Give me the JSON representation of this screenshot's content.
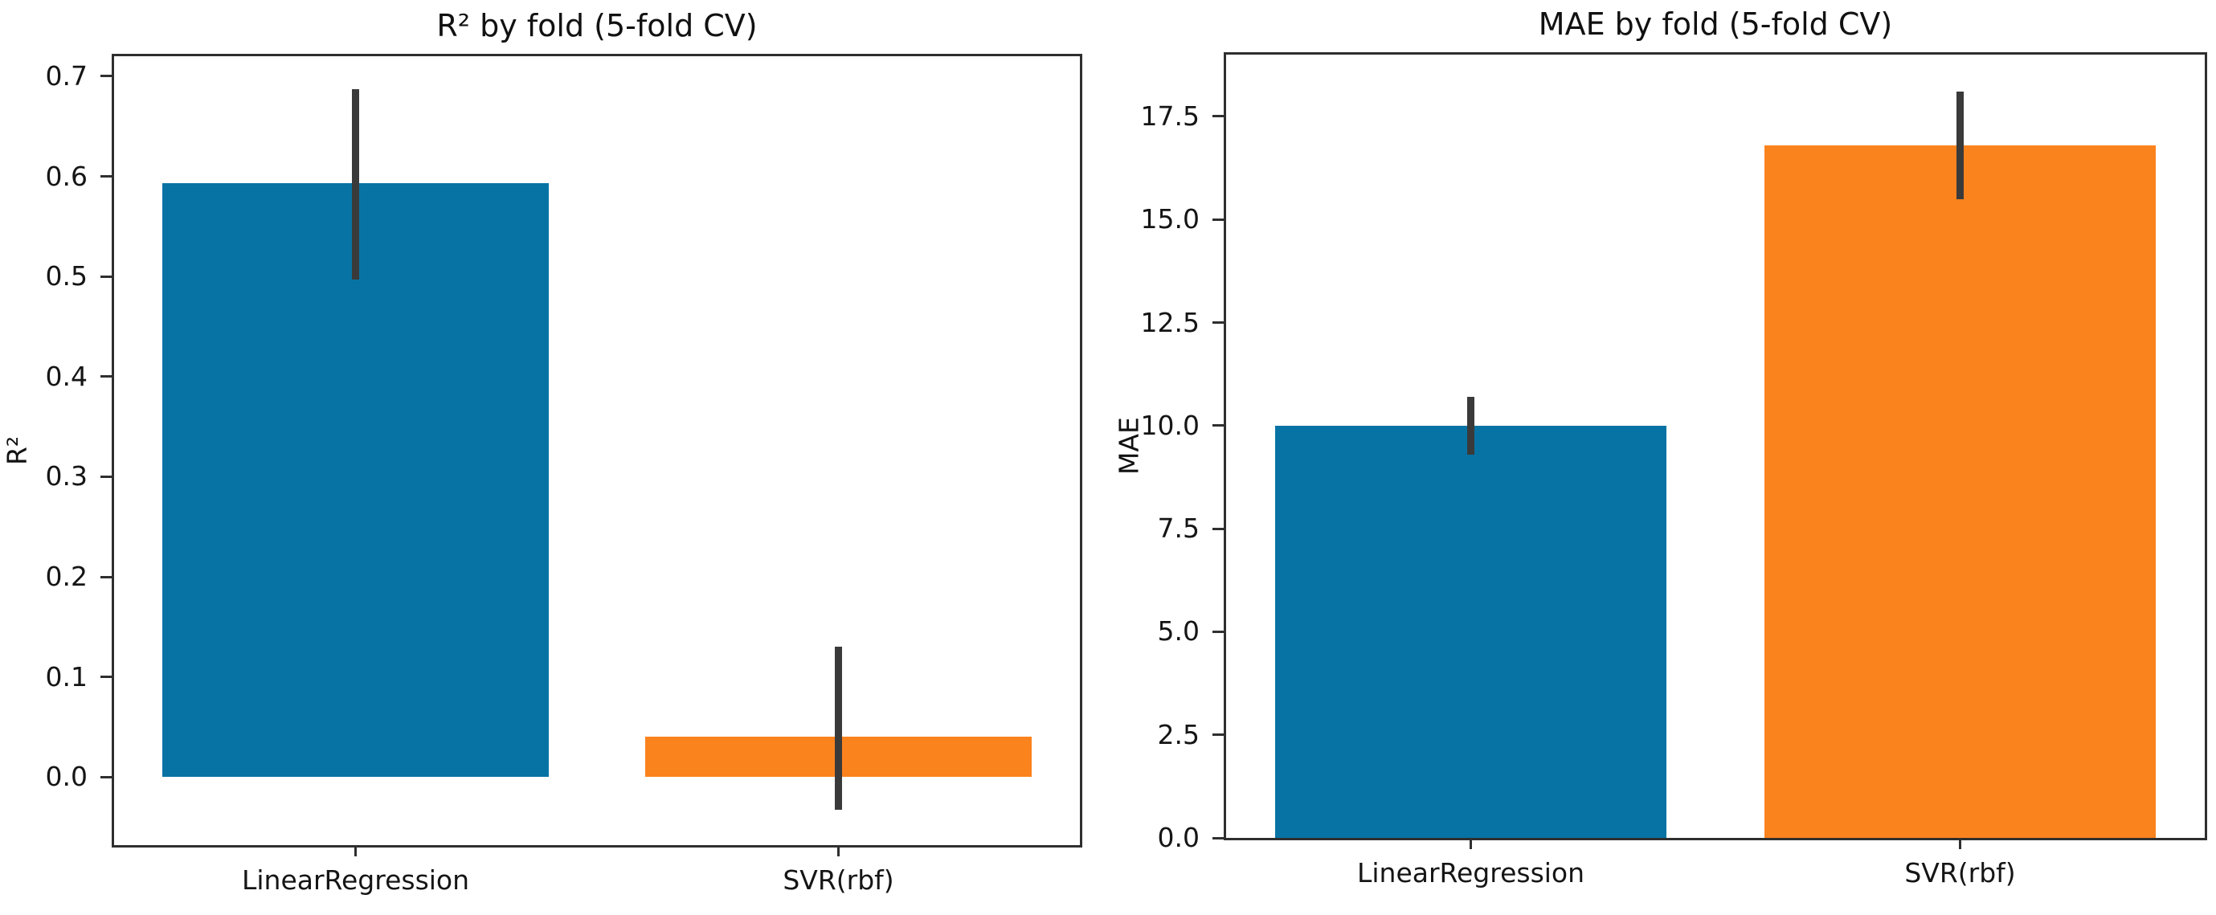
{
  "figure_title": "",
  "colors": {
    "background": "#ffffff",
    "bar_blue": "#0773a4",
    "bar_orange": "#fb831e",
    "error_bar": "#3a3a3a",
    "spine": "#2f2f2f",
    "text": "#111111"
  },
  "chart_data": [
    {
      "type": "bar",
      "title": "R² by fold (5-fold CV)",
      "xlabel": "",
      "ylabel": "R²",
      "categories": [
        "LinearRegression",
        "SVR(rbf)"
      ],
      "values": [
        0.593,
        0.04
      ],
      "error_bars": {
        "low": [
          0.497,
          -0.033
        ],
        "high": [
          0.687,
          0.13
        ]
      },
      "bar_colors": [
        "#0773a4",
        "#fb831e"
      ],
      "ylim": [
        -0.068,
        0.72
      ],
      "yticks": [
        0.0,
        0.1,
        0.2,
        0.3,
        0.4,
        0.5,
        0.6,
        0.7
      ],
      "ytick_labels": [
        "0.0",
        "0.1",
        "0.2",
        "0.3",
        "0.4",
        "0.5",
        "0.6",
        "0.7"
      ],
      "grid": false,
      "legend": null
    },
    {
      "type": "bar",
      "title": "MAE by fold (5-fold CV)",
      "xlabel": "",
      "ylabel": "MAE",
      "categories": [
        "LinearRegression",
        "SVR(rbf)"
      ],
      "values": [
        10.0,
        16.8
      ],
      "error_bars": {
        "low": [
          9.3,
          15.5
        ],
        "high": [
          10.7,
          18.1
        ]
      },
      "bar_colors": [
        "#0773a4",
        "#fb831e"
      ],
      "ylim": [
        0,
        19.0
      ],
      "yticks": [
        0.0,
        2.5,
        5.0,
        7.5,
        10.0,
        12.5,
        15.0,
        17.5
      ],
      "ytick_labels": [
        "0.0",
        "2.5",
        "5.0",
        "7.5",
        "10.0",
        "12.5",
        "15.0",
        "17.5"
      ],
      "grid": false,
      "legend": null
    }
  ]
}
